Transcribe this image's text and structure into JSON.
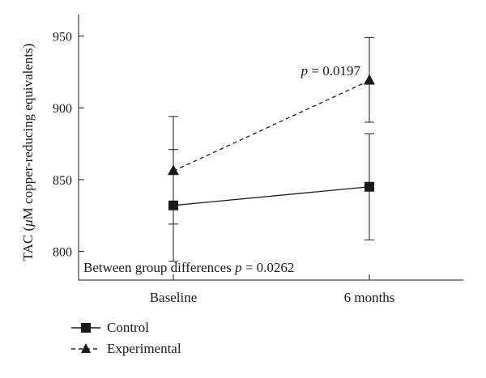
{
  "chart_data": {
    "type": "line",
    "categories": [
      "Baseline",
      "6 months"
    ],
    "ylabel_prefix": "TAC (",
    "ylabel_mu": "μ",
    "ylabel_suffix": "M copper-reducing equivalents)",
    "yticks": [
      800,
      850,
      900,
      950
    ],
    "ylim": [
      780,
      965
    ],
    "grid": false,
    "legend_position": "below-left",
    "series": [
      {
        "name": "Control",
        "marker": "square",
        "line_style": "solid",
        "values": [
          832,
          845
        ],
        "error_low": [
          793,
          808
        ],
        "error_high": [
          871,
          882
        ]
      },
      {
        "name": "Experimental",
        "marker": "triangle",
        "line_style": "dashed",
        "values": [
          856,
          919
        ],
        "error_low": [
          819,
          890
        ],
        "error_high": [
          894,
          949
        ]
      }
    ],
    "annotations": {
      "p_label": "p",
      "p_value_text": " = 0.0197",
      "between_text": "Between group differences ",
      "between_p_label": "p",
      "between_p_value_text": " = 0.0262"
    },
    "colors": {
      "ink": "#1a1a1a",
      "background": "#ffffff"
    }
  }
}
